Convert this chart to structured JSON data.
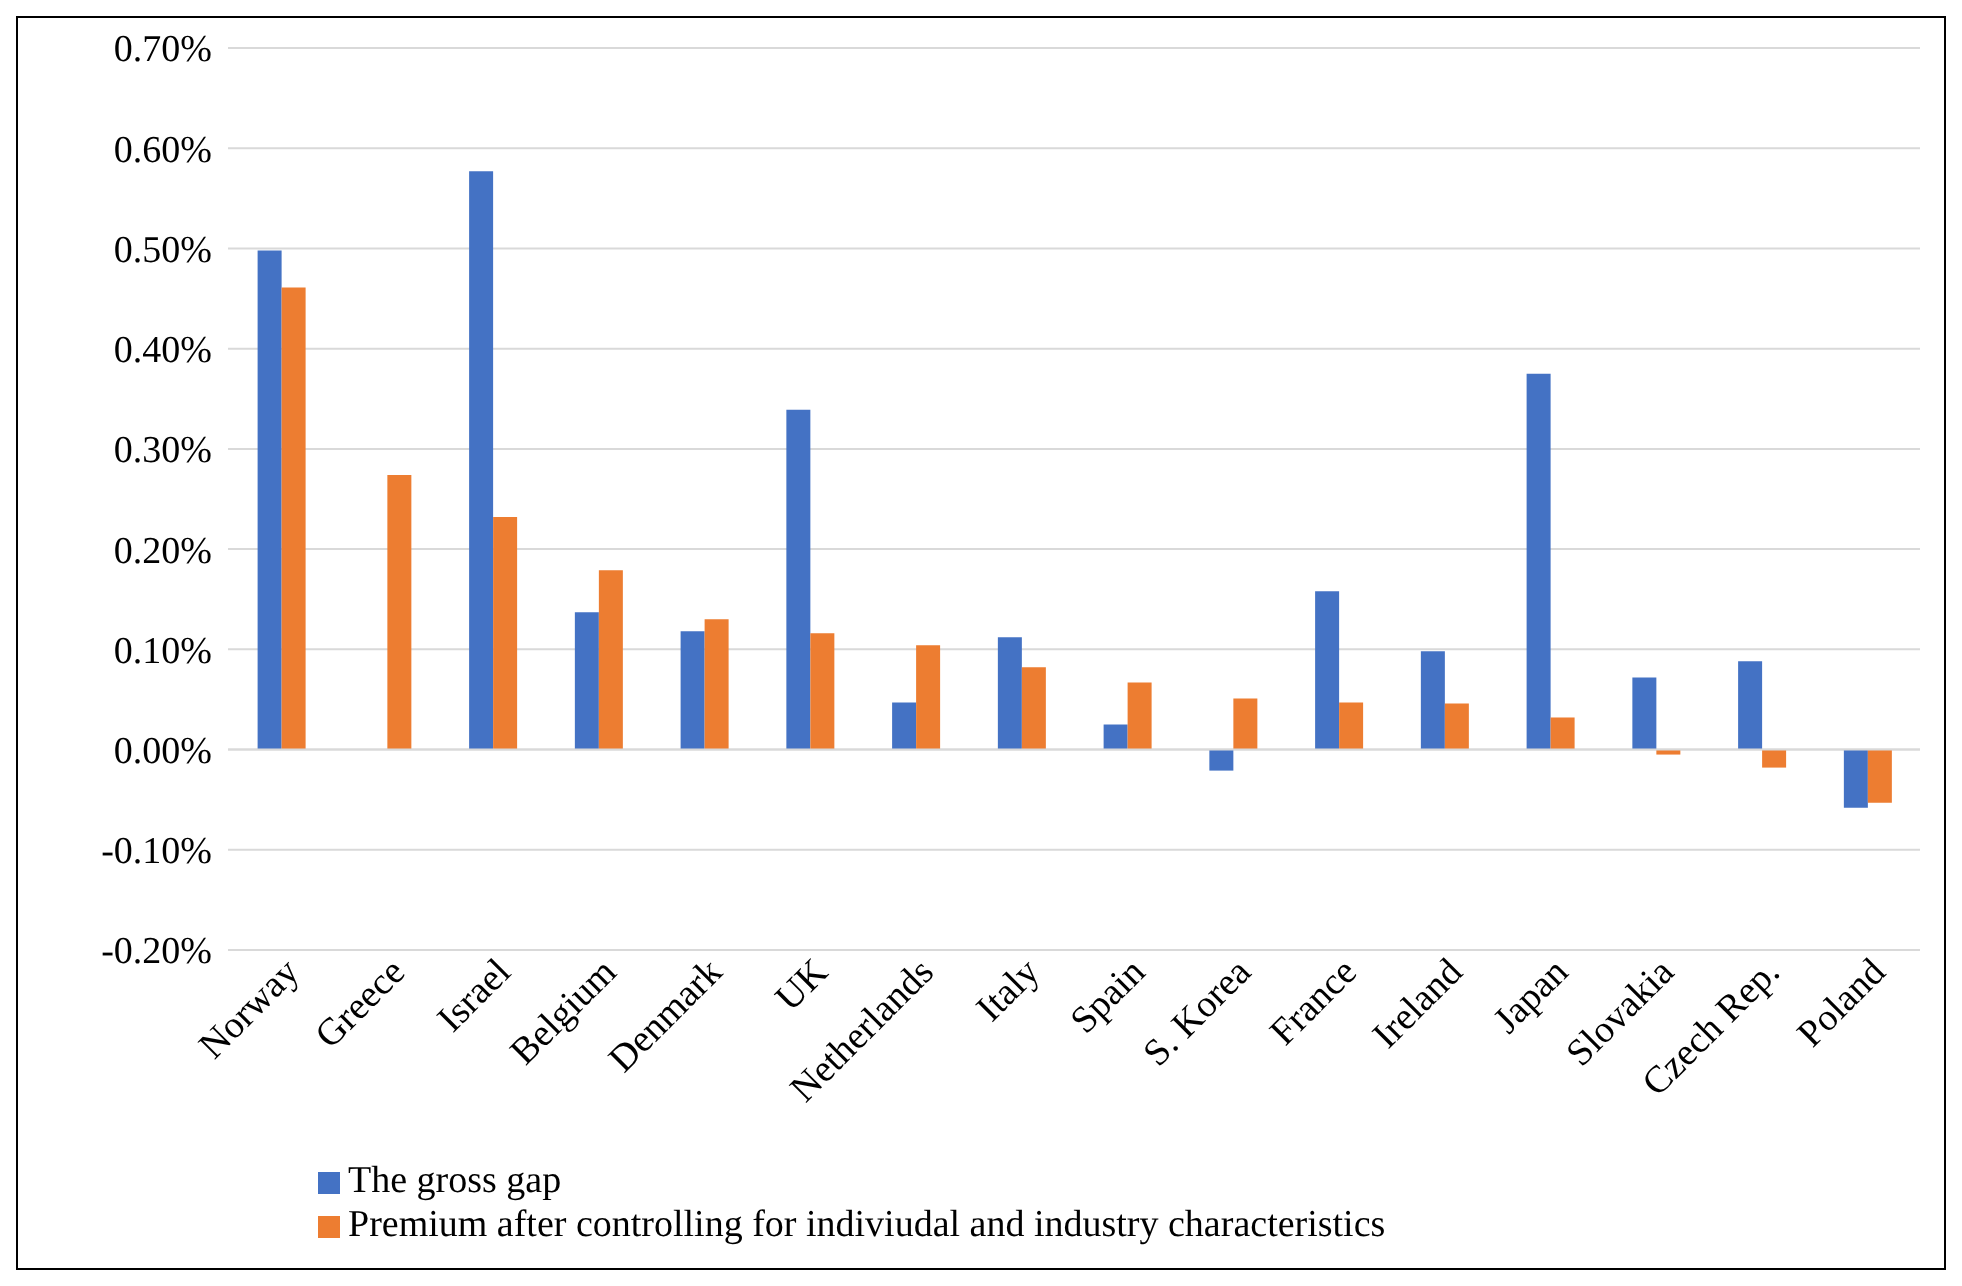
{
  "chart_data": {
    "type": "bar",
    "categories": [
      "Norway",
      "Greece",
      "Israel",
      "Belgium",
      "Denmark",
      "UK",
      "Netherlands",
      "Italy",
      "Spain",
      "S. Korea",
      "France",
      "Ireland",
      "Japan",
      "Slovakia",
      "Czech Rep.",
      "Poland"
    ],
    "series": [
      {
        "name": "The gross gap",
        "color": "#4472c4",
        "values": [
          0.498,
          null,
          0.577,
          0.137,
          0.118,
          0.339,
          0.047,
          0.112,
          0.025,
          -0.021,
          0.158,
          0.098,
          0.375,
          0.072,
          0.088,
          -0.058
        ]
      },
      {
        "name": "Premium after controlling for indiviudal and industry characteristics",
        "color": "#ed7d31",
        "values": [
          0.461,
          0.274,
          0.232,
          0.179,
          0.13,
          0.116,
          0.104,
          0.082,
          0.067,
          0.051,
          0.047,
          0.046,
          0.032,
          -0.005,
          -0.018,
          -0.053
        ]
      }
    ],
    "ylim": [
      -0.2,
      0.7
    ],
    "yticks": [
      {
        "value": -0.2,
        "label": "-0.20%"
      },
      {
        "value": -0.1,
        "label": "-0.10%"
      },
      {
        "value": 0,
        "label": "0.00%"
      },
      {
        "value": 0.1,
        "label": "0.10%"
      },
      {
        "value": 0.2,
        "label": "0.20%"
      },
      {
        "value": 0.3,
        "label": "0.30%"
      },
      {
        "value": 0.4,
        "label": "0.40%"
      },
      {
        "value": 0.5,
        "label": "0.50%"
      },
      {
        "value": 0.6,
        "label": "0.60%"
      },
      {
        "value": 0.7,
        "label": "0.70%"
      }
    ],
    "grid": "y",
    "legend": "bottom left"
  }
}
